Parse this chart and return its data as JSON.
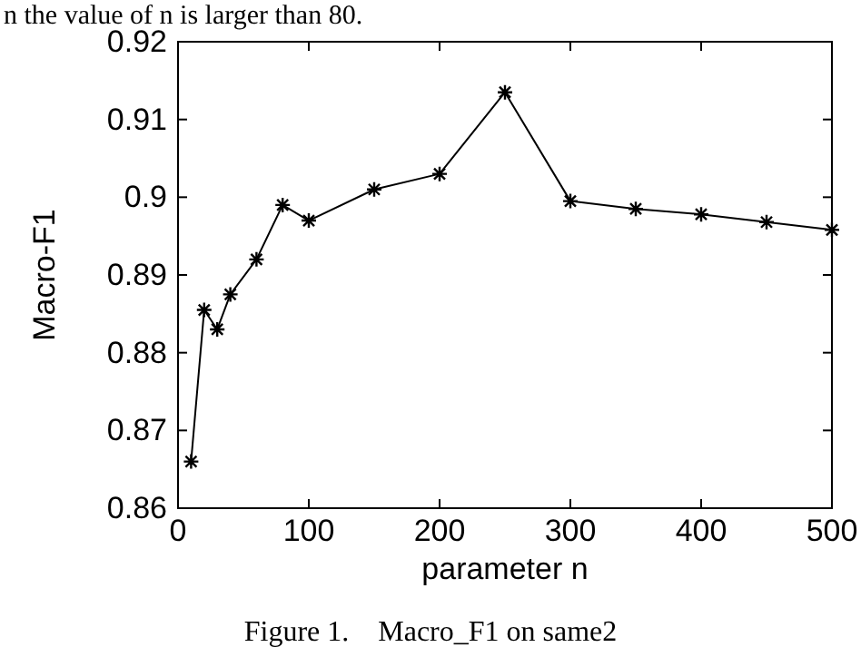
{
  "chart_data": {
    "type": "line",
    "title": "Figure 1.    Macro_F1 on same2",
    "xlabel": "parameter n",
    "ylabel": "Macro-F1",
    "annotations": [
      "n the value of n is larger than 80."
    ],
    "x": [
      10,
      20,
      30,
      40,
      60,
      80,
      100,
      150,
      200,
      250,
      300,
      350,
      400,
      450,
      500
    ],
    "series": [
      {
        "color": "#000000",
        "values": [
          0.866,
          0.8855,
          0.883,
          0.8875,
          0.892,
          0.899,
          0.897,
          0.901,
          0.903,
          0.9135,
          0.8995,
          0.8985,
          0.8978,
          0.8968,
          0.8958
        ]
      }
    ],
    "xlim": [
      0,
      500
    ],
    "xticks": [
      0,
      100,
      200,
      300,
      400,
      500
    ],
    "ylim": [
      0.86,
      0.92
    ],
    "yticks": [
      0.86,
      0.87,
      0.88,
      0.89,
      0.9,
      0.91,
      0.92
    ],
    "grid": false,
    "marker": "cross",
    "line_style": "solid"
  }
}
